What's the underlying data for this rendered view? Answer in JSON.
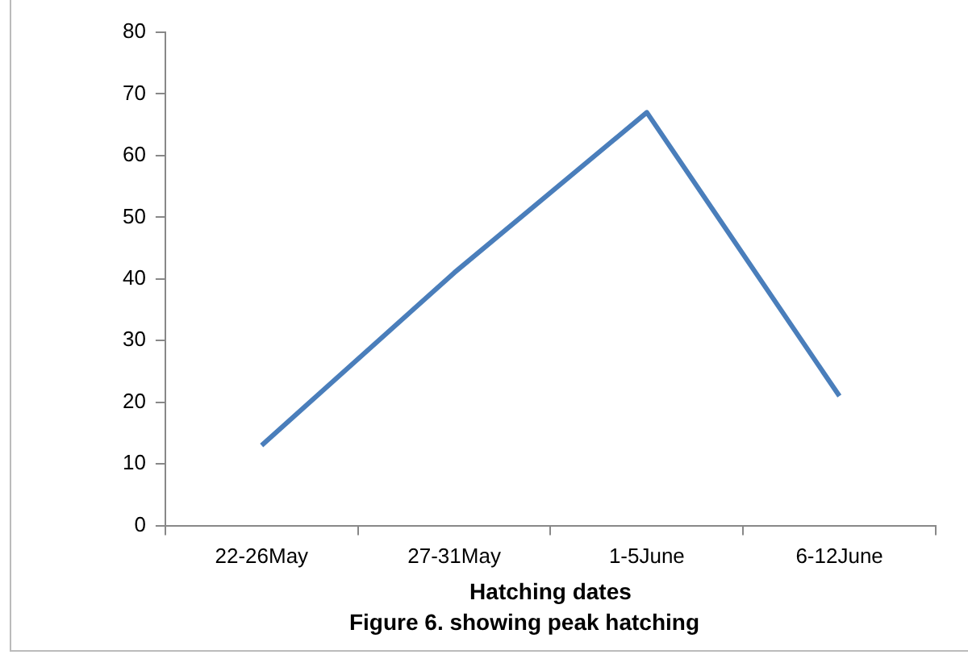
{
  "chart_data": {
    "type": "line",
    "title": "Figure 6. showing peak hatching",
    "xlabel": "Hatching dates",
    "categories": [
      "22-26May",
      "27-31May",
      "1-5June",
      "6-12June"
    ],
    "series": [
      {
        "color": "#4a7ebb",
        "values": [
          13,
          41,
          67,
          21
        ]
      }
    ],
    "ylim": [
      0,
      80
    ],
    "yticks": [
      0,
      10,
      20,
      30,
      40,
      50,
      60,
      70,
      80
    ],
    "grid": false,
    "legend": false,
    "marker": "none",
    "line_style": "solid"
  }
}
